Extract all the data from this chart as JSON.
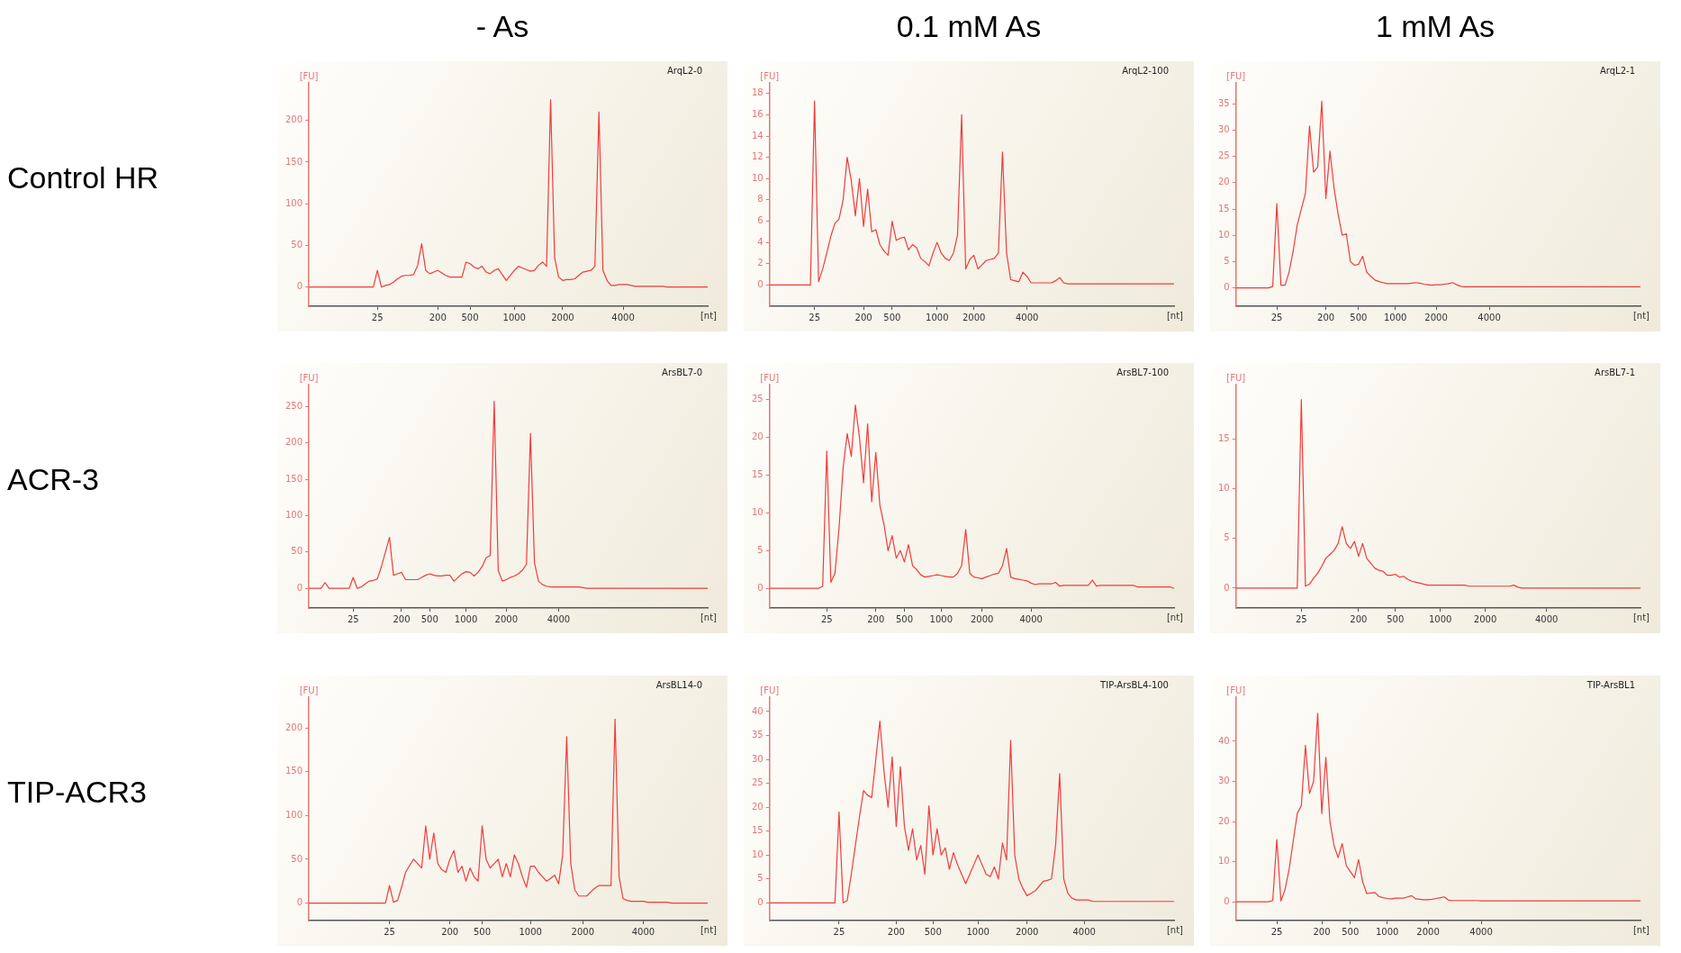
{
  "chart_data": [
    {
      "type": "line",
      "title": "ArqL2-0",
      "xlabel": "[nt]",
      "ylabel": "[FU]",
      "color": "#f03c3c",
      "annotations": [
        "- As",
        "Control HR"
      ],
      "ylim": [
        -23,
        245
      ],
      "yticks": [
        0,
        50,
        100,
        150,
        200
      ],
      "categories": [
        null,
        null,
        null,
        null,
        null,
        null,
        null,
        null,
        null,
        null,
        null,
        null,
        null,
        null,
        null,
        null,
        null,
        "25",
        null,
        null,
        null,
        null,
        null,
        null,
        null,
        null,
        null,
        null,
        null,
        null,
        null,
        null,
        "200",
        null,
        null,
        null,
        null,
        null,
        null,
        null,
        "500",
        null,
        null,
        null,
        null,
        null,
        null,
        null,
        null,
        null,
        null,
        "1000",
        null,
        null,
        null,
        null,
        null,
        null,
        null,
        null,
        null,
        null,
        null,
        "2000",
        null,
        null,
        null,
        null,
        null,
        null,
        null,
        null,
        null,
        null,
        null,
        null,
        null,
        null,
        "4000",
        null,
        null,
        null,
        null,
        null,
        null,
        null,
        null,
        null,
        null,
        null,
        null,
        null,
        null,
        null,
        null,
        null,
        null,
        null,
        null,
        null
      ],
      "values": [
        0,
        0,
        0,
        0,
        0,
        0,
        0,
        0,
        0,
        0,
        0,
        0,
        0,
        0,
        0,
        0,
        0,
        20,
        0,
        2,
        3,
        6,
        10,
        13,
        14,
        14,
        15,
        26,
        52,
        20,
        16,
        18,
        20,
        17,
        14,
        12,
        12,
        12,
        12,
        30,
        28,
        24,
        22,
        25,
        18,
        16,
        20,
        22,
        15,
        8,
        14,
        20,
        25,
        23,
        21,
        19,
        20,
        26,
        30,
        25,
        225,
        35,
        12,
        8,
        9,
        9,
        10,
        14,
        18,
        19,
        20,
        25,
        210,
        20,
        8,
        2,
        2,
        3,
        3,
        3,
        2,
        1,
        1,
        1,
        1,
        1,
        1,
        1,
        1,
        0,
        0,
        0,
        0,
        0,
        0,
        0,
        0,
        0,
        0,
        0
      ]
    },
    {
      "type": "line",
      "title": "ArqL2-100",
      "xlabel": "[nt]",
      "ylabel": "[FU]",
      "color": "#f03c3c",
      "annotations": [
        "0.1 mM As"
      ],
      "ylim": [
        -2,
        19
      ],
      "yticks": [
        0,
        2,
        4,
        6,
        8,
        10,
        12,
        14,
        16,
        18
      ],
      "categories": [
        null,
        null,
        null,
        null,
        null,
        null,
        null,
        null,
        null,
        null,
        null,
        "25",
        null,
        null,
        null,
        null,
        null,
        null,
        null,
        null,
        null,
        null,
        null,
        "200",
        null,
        null,
        null,
        null,
        null,
        null,
        "500",
        null,
        null,
        null,
        null,
        null,
        null,
        null,
        null,
        null,
        null,
        "1000",
        null,
        null,
        null,
        null,
        null,
        null,
        null,
        null,
        "2000",
        null,
        null,
        null,
        null,
        null,
        null,
        null,
        null,
        null,
        null,
        null,
        null,
        "4000",
        null,
        null,
        null,
        null,
        null,
        null,
        null,
        null,
        null,
        null,
        null,
        null,
        null,
        null,
        null,
        null,
        null,
        null,
        null,
        null,
        null,
        null,
        null,
        null,
        null,
        null,
        null,
        null,
        null,
        null,
        null,
        null,
        null,
        null,
        null,
        null
      ],
      "values": [
        0,
        0,
        0,
        0,
        0,
        0,
        0,
        0,
        0,
        0,
        0,
        17.3,
        0.3,
        1.5,
        3,
        4.6,
        5.8,
        6.2,
        8,
        12,
        9.8,
        6.5,
        10,
        5.5,
        9,
        5,
        5.2,
        3.8,
        3.2,
        2.8,
        6,
        4.2,
        4.4,
        4.5,
        3.3,
        3.8,
        3.5,
        2.5,
        2.2,
        1.8,
        3,
        4,
        3,
        2.5,
        2.3,
        3,
        4.7,
        16,
        1.5,
        2.4,
        2.8,
        1.5,
        1.9,
        2.3,
        2.4,
        2.5,
        3,
        12.5,
        3,
        0.5,
        0.4,
        0.3,
        1.2,
        0.8,
        0.2,
        0.2,
        0.2,
        0.2,
        0.2,
        0.2,
        0.4,
        0.7,
        0.2,
        0.1,
        0.1,
        0.1,
        0.1,
        0.1,
        0.1,
        0.1,
        0.1,
        0.1,
        0.1,
        0.1,
        0.1,
        0.1,
        0.1,
        0.1,
        0.1,
        0.1,
        0.1,
        0.1,
        0.1,
        0.1,
        0.1,
        0.1,
        0.1,
        0.1,
        0.1,
        0.1
      ]
    },
    {
      "type": "line",
      "title": "ArqL2-1",
      "xlabel": "[nt]",
      "ylabel": "[FU]",
      "color": "#f03c3c",
      "annotations": [
        "1 mM As"
      ],
      "ylim": [
        -3.5,
        39
      ],
      "yticks": [
        0,
        5,
        10,
        15,
        20,
        25,
        30,
        35
      ],
      "categories": [
        null,
        null,
        null,
        null,
        null,
        null,
        null,
        null,
        null,
        null,
        "25",
        null,
        null,
        null,
        null,
        null,
        null,
        null,
        null,
        null,
        null,
        null,
        "200",
        null,
        null,
        null,
        null,
        null,
        null,
        null,
        "500",
        null,
        null,
        null,
        null,
        null,
        null,
        null,
        null,
        "1000",
        null,
        null,
        null,
        null,
        null,
        null,
        null,
        null,
        null,
        "2000",
        null,
        null,
        null,
        null,
        null,
        null,
        null,
        null,
        null,
        null,
        null,
        null,
        "4000",
        null,
        null,
        null,
        null,
        null,
        null,
        null,
        null,
        null,
        null,
        null,
        null,
        null,
        null,
        null,
        null,
        null,
        null,
        null,
        null,
        null,
        null,
        null,
        null,
        null,
        null,
        null,
        null,
        null,
        null,
        null,
        null,
        null,
        null,
        null,
        null,
        null
      ],
      "values": [
        0,
        0,
        0,
        0,
        0,
        0,
        0,
        0,
        0,
        0.3,
        16,
        0.5,
        0.5,
        3,
        7,
        12,
        15,
        18,
        30.8,
        22,
        23,
        35.5,
        17,
        26,
        19,
        14,
        10,
        10.3,
        5,
        4.3,
        4.5,
        6,
        3,
        2.2,
        1.5,
        1.2,
        1,
        0.8,
        0.8,
        0.8,
        0.8,
        0.8,
        0.8,
        0.9,
        1,
        0.9,
        0.7,
        0.6,
        0.5,
        0.6,
        0.6,
        0.7,
        0.8,
        1,
        0.6,
        0.3,
        0.2,
        0.2,
        0.2,
        0.2,
        0.2,
        0.2,
        0.2,
        0.2,
        0.2,
        0.2,
        0.2,
        0.2,
        0.2,
        0.2,
        0.2,
        0.2,
        0.2,
        0.2,
        0.2,
        0.2,
        0.2,
        0.2,
        0.2,
        0.2,
        0.2,
        0.2,
        0.2,
        0.2,
        0.2,
        0.2,
        0.2,
        0.2,
        0.2,
        0.2,
        0.2,
        0.2,
        0.2,
        0.2,
        0.2,
        0.2,
        0.2,
        0.2,
        0.2,
        0.2
      ]
    },
    {
      "type": "line",
      "title": "ArsBL7-0",
      "xlabel": "[nt]",
      "ylabel": "[FU]",
      "color": "#f03c3c",
      "annotations": [
        "ACR-3"
      ],
      "ylim": [
        -27,
        280
      ],
      "yticks": [
        0,
        50,
        100,
        150,
        200,
        250
      ],
      "categories": [
        null,
        null,
        null,
        null,
        null,
        null,
        null,
        null,
        null,
        null,
        null,
        "25",
        null,
        null,
        null,
        null,
        null,
        null,
        null,
        null,
        null,
        null,
        null,
        "200",
        null,
        null,
        null,
        null,
        null,
        null,
        "500",
        null,
        null,
        null,
        null,
        null,
        null,
        null,
        null,
        "1000",
        null,
        null,
        null,
        null,
        null,
        null,
        null,
        null,
        null,
        "2000",
        null,
        null,
        null,
        null,
        null,
        null,
        null,
        null,
        null,
        null,
        null,
        null,
        "4000",
        null,
        null,
        null,
        null,
        null,
        null,
        null,
        null,
        null,
        null,
        null,
        null,
        null,
        null,
        null,
        null,
        null,
        null,
        null,
        null,
        null,
        null,
        null,
        null,
        null,
        null,
        null,
        null,
        null,
        null,
        null,
        null,
        null,
        null,
        null,
        null,
        null
      ],
      "values": [
        0,
        0,
        0,
        0,
        8,
        0,
        0,
        0,
        0,
        0,
        0,
        15,
        0,
        2,
        6,
        10,
        11,
        13,
        30,
        50,
        70,
        18,
        20,
        22,
        12,
        12,
        12,
        12,
        15,
        18,
        20,
        18,
        17,
        17,
        18,
        18,
        10,
        15,
        20,
        23,
        22,
        17,
        22,
        30,
        42,
        45,
        257,
        25,
        10,
        12,
        15,
        17,
        20,
        25,
        33,
        213,
        35,
        10,
        5,
        3,
        2,
        2,
        2,
        2,
        2,
        2,
        2,
        2,
        1,
        0,
        0,
        0,
        0,
        0,
        0,
        0,
        0,
        0,
        0,
        0,
        0,
        0,
        0,
        0,
        0,
        0,
        0,
        0,
        0,
        0,
        0,
        0,
        0,
        0,
        0,
        0,
        0,
        0,
        0,
        0
      ]
    },
    {
      "type": "line",
      "title": "ArsBL7-100",
      "xlabel": "[nt]",
      "ylabel": "[FU]",
      "color": "#f03c3c",
      "ylim": [
        -2.6,
        27
      ],
      "yticks": [
        0,
        5,
        10,
        15,
        20,
        25
      ],
      "categories": [
        null,
        null,
        null,
        null,
        null,
        null,
        null,
        null,
        null,
        null,
        null,
        null,
        null,
        null,
        "25",
        null,
        null,
        null,
        null,
        null,
        null,
        null,
        null,
        null,
        null,
        null,
        "200",
        null,
        null,
        null,
        null,
        null,
        null,
        "500",
        null,
        null,
        null,
        null,
        null,
        null,
        null,
        null,
        "1000",
        null,
        null,
        null,
        null,
        null,
        null,
        null,
        null,
        null,
        "2000",
        null,
        null,
        null,
        null,
        null,
        null,
        null,
        null,
        null,
        null,
        null,
        "4000",
        null,
        null,
        null,
        null,
        null,
        null,
        null,
        null,
        null,
        null,
        null,
        null,
        null,
        null,
        null,
        null,
        null,
        null,
        null,
        null,
        null,
        null,
        null,
        null,
        null,
        null,
        null,
        null,
        null,
        null,
        null,
        null,
        null,
        null,
        null
      ],
      "values": [
        0,
        0,
        0,
        0,
        0,
        0,
        0,
        0,
        0,
        0,
        0,
        0,
        0,
        0.3,
        18.2,
        0.8,
        2,
        8,
        16,
        20.5,
        17.5,
        24.3,
        20,
        14,
        21.8,
        11.5,
        18,
        11,
        8.5,
        5,
        7,
        4,
        5,
        3.5,
        5.8,
        3,
        2.5,
        1.8,
        1.5,
        1.6,
        1.7,
        1.8,
        1.7,
        1.6,
        1.5,
        1.5,
        2,
        3,
        7.8,
        2,
        1.5,
        1.4,
        1.3,
        1.5,
        1.7,
        1.9,
        2,
        3,
        5.3,
        1.5,
        1.3,
        1.2,
        1.1,
        1,
        0.7,
        0.5,
        0.6,
        0.6,
        0.6,
        0.6,
        0.8,
        0.3,
        0.4,
        0.4,
        0.4,
        0.4,
        0.4,
        0.4,
        0.4,
        1.1,
        0.3,
        0.4,
        0.4,
        0.4,
        0.4,
        0.4,
        0.4,
        0.4,
        0.4,
        0.4,
        0.2,
        0.2,
        0.2,
        0.2,
        0.2,
        0.2,
        0.2,
        0.2,
        0.2,
        0
      ]
    },
    {
      "type": "line",
      "title": "ArsBL7-1",
      "xlabel": "[nt]",
      "ylabel": "[FU]",
      "color": "#f03c3c",
      "ylim": [
        -2,
        20.5
      ],
      "yticks": [
        0,
        5,
        10,
        15
      ],
      "categories": [
        null,
        null,
        null,
        null,
        null,
        null,
        null,
        null,
        null,
        null,
        null,
        null,
        null,
        null,
        null,
        null,
        "25",
        null,
        null,
        null,
        null,
        null,
        null,
        null,
        null,
        null,
        null,
        null,
        null,
        null,
        "200",
        null,
        null,
        null,
        null,
        null,
        null,
        null,
        null,
        "500",
        null,
        null,
        null,
        null,
        null,
        null,
        null,
        null,
        null,
        null,
        "1000",
        null,
        null,
        null,
        null,
        null,
        null,
        null,
        null,
        null,
        null,
        "2000",
        null,
        null,
        null,
        null,
        null,
        null,
        null,
        null,
        null,
        null,
        null,
        null,
        null,
        null,
        "4000",
        null,
        null,
        null,
        null,
        null,
        null,
        null,
        null,
        null,
        null,
        null,
        null,
        null,
        null,
        null,
        null,
        null,
        null,
        null,
        null,
        null,
        null,
        null
      ],
      "values": [
        0,
        0,
        0,
        0,
        0,
        0,
        0,
        0,
        0,
        0,
        0,
        0,
        0,
        0,
        0,
        0,
        19,
        0.2,
        0.4,
        1,
        1.5,
        2.2,
        3,
        3.4,
        3.8,
        4.5,
        6.2,
        4.5,
        4,
        4.7,
        3.2,
        4.5,
        3,
        2.5,
        2,
        1.8,
        1.7,
        1.3,
        1.3,
        1.4,
        1.1,
        1.2,
        0.9,
        0.7,
        0.6,
        0.5,
        0.4,
        0.3,
        0.3,
        0.3,
        0.3,
        0.3,
        0.3,
        0.3,
        0.3,
        0.3,
        0.3,
        0.2,
        0.2,
        0.2,
        0.2,
        0.2,
        0.2,
        0.2,
        0.2,
        0.2,
        0.2,
        0.2,
        0.3,
        0.1,
        0,
        0,
        0,
        0,
        0,
        0,
        0,
        0,
        0,
        0,
        0,
        0,
        0,
        0,
        0,
        0,
        0,
        0,
        0,
        0,
        0,
        0,
        0,
        0,
        0,
        0,
        0,
        0,
        0,
        0
      ]
    },
    {
      "type": "line",
      "title": "ArsBL14-0",
      "xlabel": "[nt]",
      "ylabel": "[FU]",
      "color": "#f03c3c",
      "annotations": [
        "TIP-ACR3"
      ],
      "ylim": [
        -20,
        235
      ],
      "yticks": [
        0,
        50,
        100,
        150,
        200
      ],
      "categories": [
        null,
        null,
        null,
        null,
        null,
        null,
        null,
        null,
        null,
        null,
        null,
        null,
        null,
        null,
        null,
        null,
        null,
        null,
        null,
        null,
        "25",
        null,
        null,
        null,
        null,
        null,
        null,
        null,
        null,
        null,
        null,
        null,
        null,
        null,
        null,
        "200",
        null,
        null,
        null,
        null,
        null,
        null,
        null,
        "500",
        null,
        null,
        null,
        null,
        null,
        null,
        null,
        null,
        null,
        null,
        null,
        "1000",
        null,
        null,
        null,
        null,
        null,
        null,
        null,
        null,
        null,
        null,
        null,
        null,
        "2000",
        null,
        null,
        null,
        null,
        null,
        null,
        null,
        null,
        null,
        null,
        null,
        null,
        null,
        null,
        "4000",
        null,
        null,
        null,
        null,
        null,
        null,
        null,
        null,
        null,
        null,
        null,
        null,
        null,
        null,
        null,
        null
      ],
      "values": [
        0,
        0,
        0,
        0,
        0,
        0,
        0,
        0,
        0,
        0,
        0,
        0,
        0,
        0,
        0,
        0,
        0,
        0,
        0,
        0,
        20,
        1,
        3,
        18,
        35,
        43,
        50,
        45,
        40,
        88,
        50,
        80,
        45,
        38,
        35,
        50,
        60,
        35,
        42,
        25,
        40,
        30,
        25,
        88,
        50,
        40,
        45,
        50,
        30,
        45,
        30,
        55,
        45,
        30,
        18,
        42,
        42,
        35,
        30,
        25,
        28,
        32,
        22,
        55,
        190,
        45,
        15,
        8,
        8,
        8,
        13,
        17,
        20,
        20,
        20,
        20,
        210,
        30,
        5,
        3,
        2,
        2,
        2,
        2,
        1,
        1,
        1,
        1,
        1,
        1,
        0,
        0,
        0,
        0,
        0,
        0,
        0,
        0,
        0,
        0
      ]
    },
    {
      "type": "line",
      "title": "TIP-ArsBL4-100",
      "xlabel": "[nt]",
      "ylabel": "[FU]",
      "color": "#f03c3c",
      "ylim": [
        -3.7,
        43
      ],
      "yticks": [
        0,
        5,
        10,
        15,
        20,
        25,
        30,
        35,
        40
      ],
      "categories": [
        null,
        null,
        null,
        null,
        null,
        null,
        null,
        null,
        null,
        null,
        null,
        null,
        null,
        null,
        null,
        null,
        null,
        "25",
        null,
        null,
        null,
        null,
        null,
        null,
        null,
        null,
        null,
        null,
        null,
        null,
        null,
        "200",
        null,
        null,
        null,
        null,
        null,
        null,
        null,
        null,
        "500",
        null,
        null,
        null,
        null,
        null,
        null,
        null,
        null,
        null,
        null,
        "1000",
        null,
        null,
        null,
        null,
        null,
        null,
        null,
        null,
        null,
        null,
        null,
        "2000",
        null,
        null,
        null,
        null,
        null,
        null,
        null,
        null,
        null,
        null,
        null,
        null,
        null,
        "4000",
        null,
        null,
        null,
        null,
        null,
        null,
        null,
        null,
        null,
        null,
        null,
        null,
        null,
        null,
        null,
        null,
        null,
        null,
        null,
        null,
        null,
        null
      ],
      "values": [
        0,
        0,
        0,
        0,
        0,
        0,
        0,
        0,
        0,
        0,
        0,
        0,
        0,
        0,
        0,
        0,
        0,
        19,
        0,
        0.5,
        6,
        12,
        18,
        23.5,
        22.5,
        22,
        30,
        38,
        27.5,
        20,
        30.5,
        16,
        28.5,
        16,
        11,
        15.5,
        9,
        12,
        6,
        20.3,
        10,
        15.5,
        10,
        11.5,
        7,
        10.5,
        8,
        6,
        4,
        6,
        8,
        10,
        8,
        6,
        5.5,
        7.5,
        5,
        12.5,
        9,
        34,
        10,
        5,
        3,
        1.5,
        2,
        2.5,
        3.5,
        4.5,
        4.7,
        5,
        12,
        27,
        5,
        2,
        1,
        0.6,
        0.6,
        0.6,
        0.6,
        0.3,
        0.3,
        0.3,
        0.3,
        0.3,
        0.3,
        0.3,
        0.3,
        0.3,
        0.3,
        0.3,
        0.3,
        0.3,
        0.3,
        0.3,
        0.3,
        0.3,
        0.3,
        0.3,
        0.3,
        0.3
      ]
    },
    {
      "type": "line",
      "title": "TIP-ArsBL1",
      "xlabel": "[nt]",
      "ylabel": "[FU]",
      "color": "#f03c3c",
      "ylim": [
        -4.7,
        51
      ],
      "yticks": [
        0,
        10,
        20,
        30,
        40
      ],
      "categories": [
        null,
        null,
        null,
        null,
        null,
        null,
        null,
        null,
        null,
        null,
        "25",
        null,
        null,
        null,
        null,
        null,
        null,
        null,
        null,
        null,
        null,
        "200",
        null,
        null,
        null,
        null,
        null,
        null,
        "500",
        null,
        null,
        null,
        null,
        null,
        null,
        null,
        null,
        "1000",
        null,
        null,
        null,
        null,
        null,
        null,
        null,
        null,
        null,
        "2000",
        null,
        null,
        null,
        null,
        null,
        null,
        null,
        null,
        null,
        null,
        null,
        null,
        "4000",
        null,
        null,
        null,
        null,
        null,
        null,
        null,
        null,
        null,
        null,
        null,
        null,
        null,
        null,
        null,
        null,
        null,
        null,
        null,
        null,
        null,
        null,
        null,
        null,
        null,
        null,
        null,
        null,
        null,
        null,
        null,
        null,
        null,
        null,
        null,
        null,
        null,
        null,
        null
      ],
      "values": [
        0,
        0,
        0,
        0,
        0,
        0,
        0,
        0,
        0,
        0.3,
        15.5,
        0.2,
        3,
        8,
        15,
        22,
        24,
        39,
        27,
        30,
        47,
        22,
        36,
        20,
        14,
        11,
        14.5,
        9,
        7.5,
        6,
        10.5,
        5,
        2,
        2.2,
        2.3,
        1.3,
        1,
        0.8,
        0.7,
        0.9,
        0.9,
        0.9,
        1.2,
        1.5,
        0.7,
        0.6,
        0.5,
        0.5,
        0.6,
        0.8,
        1,
        1.2,
        0.4,
        0.3,
        0.3,
        0.3,
        0.3,
        0.3,
        0.3,
        0.3,
        0.2,
        0.2,
        0.2,
        0.2,
        0.2,
        0.2,
        0.2,
        0.2,
        0.2,
        0.2,
        0.2,
        0.2,
        0.2,
        0.2,
        0.2,
        0.2,
        0.2,
        0.2,
        0.2,
        0.2,
        0.2,
        0.2,
        0.2,
        0.2,
        0.2,
        0.2,
        0.2,
        0.2,
        0.2,
        0.2,
        0.2,
        0.2,
        0.2,
        0.2,
        0.2,
        0.2,
        0.2,
        0.2,
        0.2,
        0.2
      ]
    }
  ]
}
